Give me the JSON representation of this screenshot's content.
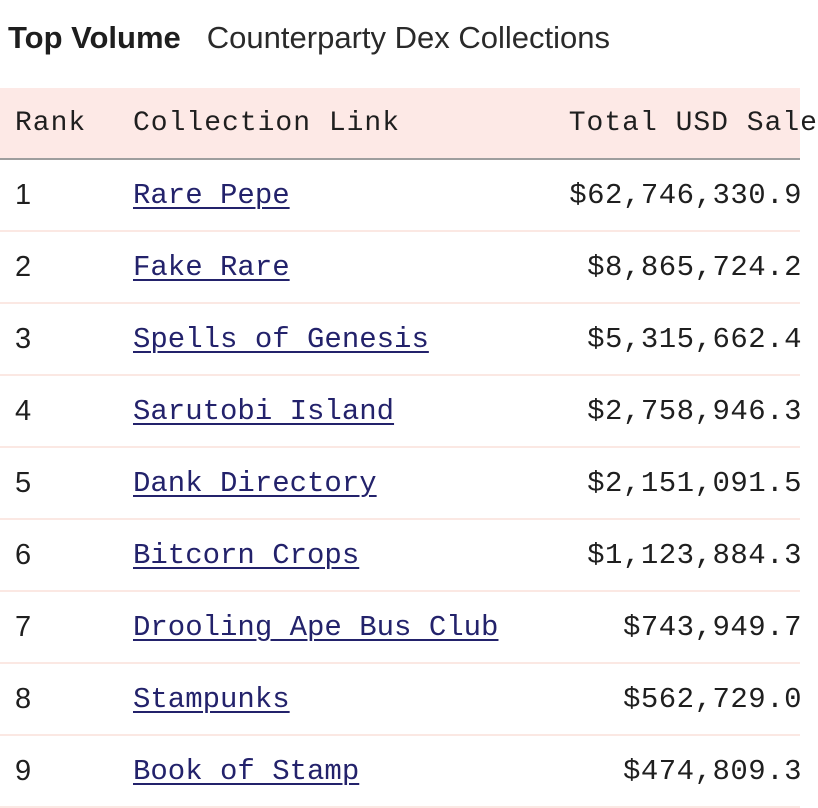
{
  "header": {
    "title": "Top Volume",
    "subtitle": "Counterparty Dex Collections"
  },
  "table": {
    "columns": [
      "Rank",
      "Collection Link",
      "Total USD Sale"
    ],
    "rows": [
      {
        "rank": "1",
        "collection": "Rare Pepe",
        "usd": "$62,746,330.9"
      },
      {
        "rank": "2",
        "collection": "Fake Rare",
        "usd": "$8,865,724.2"
      },
      {
        "rank": "3",
        "collection": "Spells of Genesis",
        "usd": "$5,315,662.4"
      },
      {
        "rank": "4",
        "collection": "Sarutobi Island",
        "usd": "$2,758,946.3"
      },
      {
        "rank": "5",
        "collection": "Dank Directory",
        "usd": "$2,151,091.5"
      },
      {
        "rank": "6",
        "collection": "Bitcorn Crops",
        "usd": "$1,123,884.3"
      },
      {
        "rank": "7",
        "collection": "Drooling Ape Bus Club",
        "usd": "$743,949.7"
      },
      {
        "rank": "8",
        "collection": "Stampunks",
        "usd": "$562,729.0"
      },
      {
        "rank": "9",
        "collection": "Book of Stamp",
        "usd": "$474,809.3"
      }
    ]
  }
}
